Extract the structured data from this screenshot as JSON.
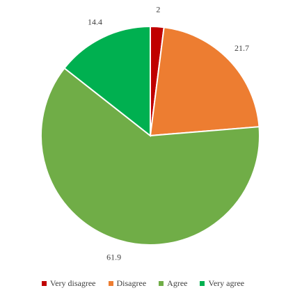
{
  "chart_data": {
    "type": "pie",
    "title": "",
    "categories": [
      "Very disagree",
      "Disagree",
      "Agree",
      "Very agree"
    ],
    "values": [
      2,
      21.7,
      61.9,
      14.4
    ],
    "labels": [
      "2",
      "21.7",
      "61.9",
      "14.4"
    ],
    "colors": [
      "#c00000",
      "#ed7d31",
      "#70ad47",
      "#00b050"
    ],
    "legend_position": "bottom",
    "start_angle": "12 o'clock, clockwise"
  }
}
